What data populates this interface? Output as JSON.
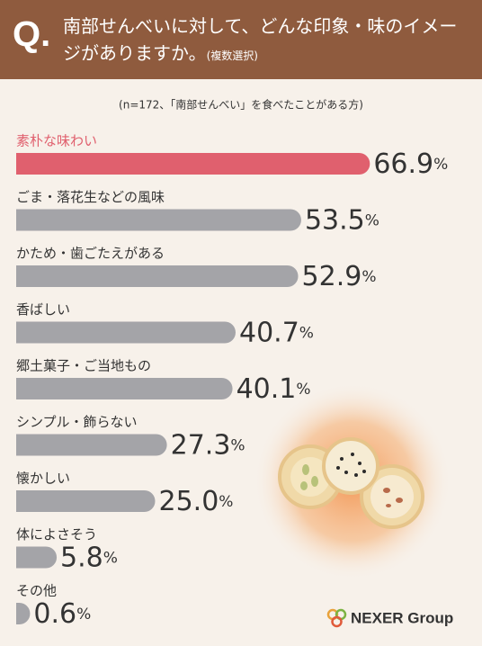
{
  "header": {
    "label": "Q."
  },
  "chart_data": {
    "type": "bar",
    "title": "南部せんべいに対して、どんな印象・味のイメージがありますか。",
    "title_note": "(複数選択)",
    "subtitle": "(n=172、「南部せんべい」を食べたことがある方)",
    "categories": [
      "素朴な味わい",
      "ごま・落花生などの風味",
      "かため・歯ごたえがある",
      "香ばしい",
      "郷土菓子・ご当地もの",
      "シンプル・飾らない",
      "懐かしい",
      "体によさそう",
      "その他"
    ],
    "values": [
      66.9,
      53.5,
      52.9,
      40.7,
      40.1,
      27.3,
      25.0,
      5.8,
      0.6
    ],
    "value_labels": [
      "66.9%",
      "53.5%",
      "52.9%",
      "40.7%",
      "40.1%",
      "27.3%",
      "25.0%",
      "5.8%",
      "0.6%"
    ],
    "colors": [
      "#e0606e",
      "#a4a4a8",
      "#a4a4a8",
      "#a4a4a8",
      "#a4a4a8",
      "#a4a4a8",
      "#a4a4a8",
      "#a4a4a8",
      "#a4a4a8"
    ],
    "label_colors": [
      "#e0606e",
      "#333333",
      "#333333",
      "#333333",
      "#333333",
      "#333333",
      "#333333",
      "#333333",
      "#333333"
    ]
  },
  "footer": {
    "logo": "NEXER Group"
  }
}
